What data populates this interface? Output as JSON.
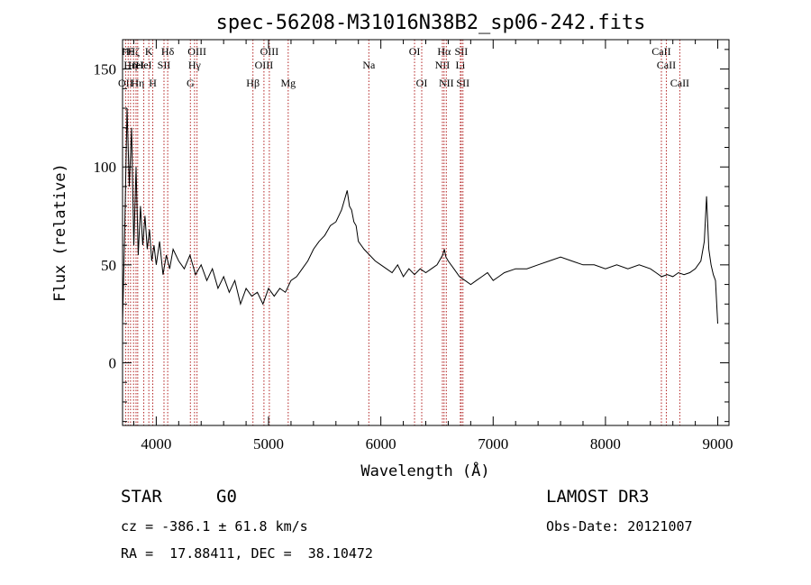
{
  "chart_data": {
    "type": "line",
    "title": "spec-56208-M31016N38B2_sp06-242.fits",
    "xlabel": "Wavelength (Å)",
    "ylabel": "Flux (relative)",
    "xlim": [
      3700,
      9100
    ],
    "ylim": [
      -32,
      165
    ],
    "xticks": [
      4000,
      5000,
      6000,
      7000,
      8000,
      9000
    ],
    "yticks": [
      0,
      50,
      100,
      150
    ],
    "grid": false,
    "series": [
      {
        "color": "#000000",
        "x": [
          3700,
          3720,
          3740,
          3760,
          3780,
          3800,
          3820,
          3840,
          3860,
          3880,
          3900,
          3920,
          3940,
          3960,
          3980,
          4000,
          4030,
          4060,
          4090,
          4120,
          4150,
          4200,
          4250,
          4300,
          4350,
          4400,
          4450,
          4500,
          4550,
          4600,
          4650,
          4700,
          4750,
          4800,
          4850,
          4900,
          4950,
          5000,
          5050,
          5100,
          5150,
          5200,
          5250,
          5300,
          5350,
          5400,
          5450,
          5500,
          5550,
          5600,
          5650,
          5700,
          5720,
          5740,
          5760,
          5780,
          5800,
          5850,
          5900,
          5950,
          6000,
          6050,
          6100,
          6150,
          6200,
          6250,
          6300,
          6350,
          6400,
          6450,
          6500,
          6550,
          6565,
          6580,
          6600,
          6650,
          6700,
          6750,
          6800,
          6850,
          6900,
          6950,
          7000,
          7050,
          7100,
          7200,
          7300,
          7400,
          7500,
          7600,
          7700,
          7800,
          7900,
          8000,
          8100,
          8200,
          8300,
          8400,
          8450,
          8500,
          8550,
          8600,
          8650,
          8700,
          8750,
          8800,
          8850,
          8880,
          8900,
          8920,
          8940,
          8960,
          8980,
          9000
        ],
        "y": [
          20,
          70,
          130,
          90,
          120,
          60,
          100,
          55,
          80,
          60,
          75,
          58,
          68,
          52,
          60,
          50,
          62,
          45,
          55,
          48,
          58,
          52,
          48,
          55,
          45,
          50,
          42,
          48,
          38,
          44,
          36,
          42,
          30,
          38,
          34,
          36,
          30,
          38,
          34,
          38,
          36,
          42,
          44,
          48,
          52,
          58,
          62,
          65,
          70,
          72,
          78,
          88,
          80,
          78,
          72,
          70,
          62,
          58,
          55,
          52,
          50,
          48,
          46,
          50,
          44,
          48,
          45,
          48,
          46,
          48,
          50,
          55,
          58,
          54,
          52,
          48,
          44,
          42,
          40,
          42,
          44,
          46,
          42,
          44,
          46,
          48,
          48,
          50,
          52,
          54,
          52,
          50,
          50,
          48,
          50,
          48,
          50,
          48,
          46,
          44,
          45,
          44,
          46,
          45,
          46,
          48,
          52,
          62,
          85,
          58,
          50,
          45,
          42,
          20
        ]
      }
    ],
    "line_markers": [
      {
        "wl": 3727,
        "label": "OII",
        "row": 3
      },
      {
        "wl": 3750,
        "label": "Hθ",
        "row": 1
      },
      {
        "wl": 3771,
        "label": "Hη",
        "row": 2
      },
      {
        "wl": 3798,
        "label": "Hζ",
        "row": 1
      },
      {
        "wl": 3820,
        "label": "HeI",
        "row": 2
      },
      {
        "wl": 3835,
        "label": "Hη",
        "row": 3
      },
      {
        "wl": 3889,
        "label": "HeI",
        "row": 2
      },
      {
        "wl": 3934,
        "label": "K",
        "row": 1
      },
      {
        "wl": 3969,
        "label": "H",
        "row": 3
      },
      {
        "wl": 4069,
        "label": "SII",
        "row": 2
      },
      {
        "wl": 4102,
        "label": "Hδ",
        "row": 1
      },
      {
        "wl": 4304,
        "label": "G",
        "row": 3
      },
      {
        "wl": 4341,
        "label": "Hγ",
        "row": 2
      },
      {
        "wl": 4363,
        "label": "OIII",
        "row": 1
      },
      {
        "wl": 4861,
        "label": "Hβ",
        "row": 3
      },
      {
        "wl": 4959,
        "label": "OIII",
        "row": 2
      },
      {
        "wl": 5007,
        "label": "OIII",
        "row": 1
      },
      {
        "wl": 5175,
        "label": "Mg",
        "row": 3
      },
      {
        "wl": 5893,
        "label": "Na",
        "row": 2
      },
      {
        "wl": 6300,
        "label": "OI",
        "row": 1
      },
      {
        "wl": 6364,
        "label": "OI",
        "row": 3
      },
      {
        "wl": 6548,
        "label": "NII",
        "row": 2
      },
      {
        "wl": 6563,
        "label": "Hα",
        "row": 1
      },
      {
        "wl": 6583,
        "label": "NII",
        "row": 3
      },
      {
        "wl": 6716,
        "label": "SII",
        "row": 1
      },
      {
        "wl": 6731,
        "label": "SII",
        "row": 3
      },
      {
        "wl": 6708,
        "label": "Li",
        "row": 2
      },
      {
        "wl": 8498,
        "label": "CaII",
        "row": 1
      },
      {
        "wl": 8542,
        "label": "CaII",
        "row": 2
      },
      {
        "wl": 8662,
        "label": "CaII",
        "row": 3
      }
    ],
    "colors": {
      "spectrum": "#000000",
      "markers": "#b22222"
    }
  },
  "info": {
    "class": "STAR",
    "subclass": "G0",
    "survey": "LAMOST DR3",
    "cz": "cz = -386.1 ± 61.8 km/s",
    "obs_date": "Obs-Date: 20121007",
    "radec": "RA =  17.88411, DEC =  38.10472"
  }
}
